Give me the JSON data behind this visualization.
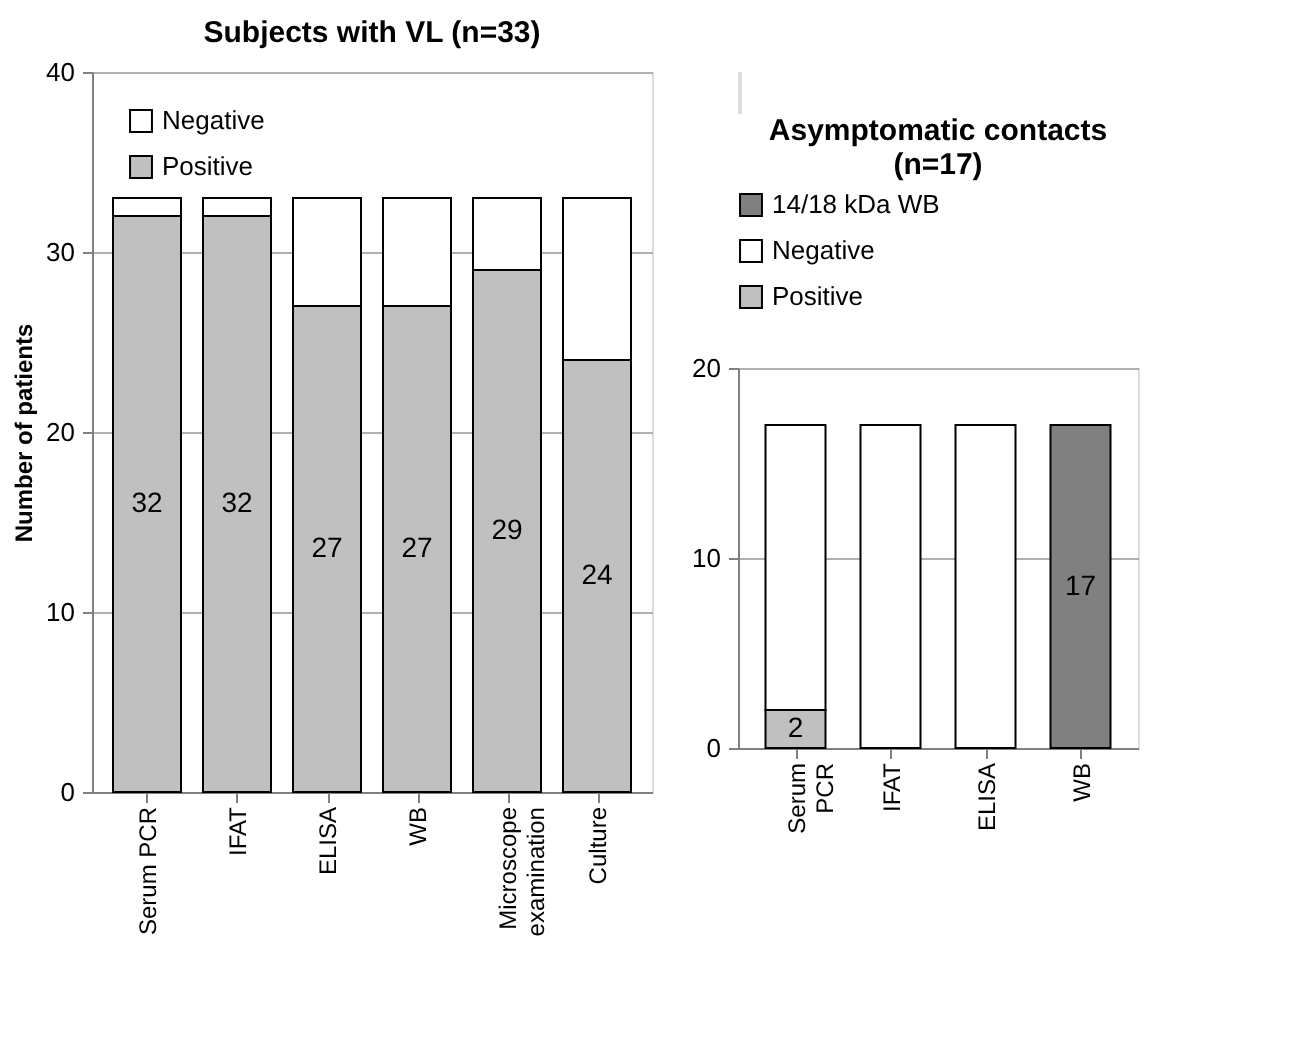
{
  "chart_data": [
    {
      "type": "bar",
      "stacked": true,
      "title": "Subjects with VL (n=33)",
      "ylabel": "Number of patients",
      "categories": [
        "Serum PCR",
        "IFAT",
        "ELISA",
        "WB",
        "Microscope examination",
        "Culture"
      ],
      "series": [
        {
          "name": "Positive",
          "color": "#c0c0c0",
          "values": [
            32,
            32,
            27,
            27,
            29,
            24
          ],
          "value_labels": [
            "32",
            "32",
            "27",
            "27",
            "29",
            "24"
          ]
        },
        {
          "name": "Negative",
          "color": "#ffffff",
          "values": [
            1,
            1,
            6,
            6,
            4,
            9
          ]
        }
      ],
      "ylim": [
        0,
        40
      ],
      "yticks": [
        0,
        10,
        20,
        30,
        40
      ],
      "grid": "y",
      "legend": "top left"
    },
    {
      "type": "bar",
      "stacked": true,
      "title": [
        "Asymptomatic contacts",
        "(n=17)"
      ],
      "categories": [
        "Serum PCR",
        "IFAT",
        "ELISA",
        "WB"
      ],
      "series": [
        {
          "name": "Positive",
          "color": "#c0c0c0",
          "values": [
            2,
            null,
            null,
            null
          ],
          "value_labels": [
            "2",
            null,
            null,
            null
          ]
        },
        {
          "name": "Negative",
          "color": "#ffffff",
          "values": [
            15,
            17,
            17,
            null
          ]
        },
        {
          "name": "14/18 kDa WB",
          "color": "#808080",
          "values": [
            null,
            null,
            null,
            17
          ],
          "value_labels": [
            null,
            null,
            null,
            "17"
          ]
        }
      ],
      "ylim": [
        0,
        20
      ],
      "yticks": [
        0,
        10,
        20
      ],
      "grid": "y",
      "legend": "top"
    }
  ]
}
